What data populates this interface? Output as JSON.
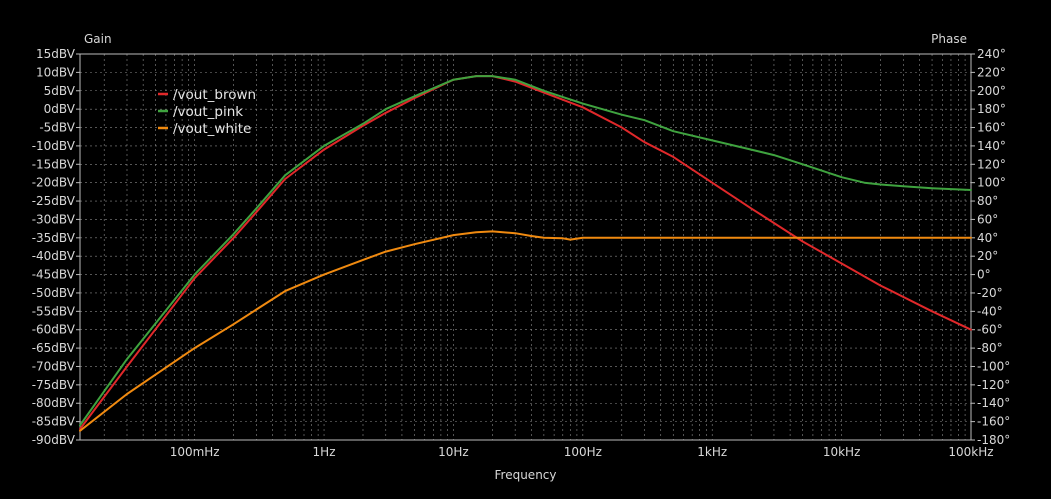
{
  "chart_data": {
    "type": "line",
    "xlabel": "Frequency",
    "y1label": "Gain",
    "y2label": "Phase",
    "x_scale": "log",
    "xlim_hz": [
      0.013,
      100000
    ],
    "ylim_dbv": [
      -90,
      15
    ],
    "y2lim_deg": [
      -180,
      240
    ],
    "grid": true,
    "legend_placement": "top-left",
    "x_tick_labels": [
      {
        "value": 0.1,
        "label": "100mHz"
      },
      {
        "value": 1,
        "label": "1Hz"
      },
      {
        "value": 10,
        "label": "10Hz"
      },
      {
        "value": 100,
        "label": "100Hz"
      },
      {
        "value": 1000,
        "label": "1kHz"
      },
      {
        "value": 10000,
        "label": "10kHz"
      },
      {
        "value": 100000,
        "label": "100kHz"
      }
    ],
    "y_tick_labels": [
      "15dBV",
      "10dBV",
      "5dBV",
      "0dBV",
      "-5dBV",
      "-10dBV",
      "-15dBV",
      "-20dBV",
      "-25dBV",
      "-30dBV",
      "-35dBV",
      "-40dBV",
      "-45dBV",
      "-50dBV",
      "-55dBV",
      "-60dBV",
      "-65dBV",
      "-70dBV",
      "-75dBV",
      "-80dBV",
      "-85dBV",
      "-90dBV"
    ],
    "y_tick_values": [
      15,
      10,
      5,
      0,
      -5,
      -10,
      -15,
      -20,
      -25,
      -30,
      -35,
      -40,
      -45,
      -50,
      -55,
      -60,
      -65,
      -70,
      -75,
      -80,
      -85,
      -90
    ],
    "y2_tick_labels": [
      "240°",
      "220°",
      "200°",
      "180°",
      "160°",
      "140°",
      "120°",
      "100°",
      "80°",
      "60°",
      "40°",
      "20°",
      "0°",
      "-20°",
      "-40°",
      "-60°",
      "-80°",
      "-100°",
      "-120°",
      "-140°",
      "-160°",
      "-180°"
    ],
    "y2_tick_values": [
      240,
      220,
      200,
      180,
      160,
      140,
      120,
      100,
      80,
      60,
      40,
      20,
      0,
      -20,
      -40,
      -60,
      -80,
      -100,
      -120,
      -140,
      -160,
      -180
    ],
    "series": [
      {
        "name": "/vout_brown",
        "color": "#e0282a",
        "x": [
          0.013,
          0.03,
          0.1,
          0.2,
          0.3,
          0.5,
          1,
          2,
          3,
          5,
          10,
          15,
          20,
          30,
          50,
          100,
          200,
          300,
          500,
          1000,
          2000,
          5000,
          10000,
          20000,
          50000,
          100000
        ],
        "y": [
          -87,
          -70,
          -46,
          -35,
          -28,
          -19,
          -11,
          -4.5,
          -1,
          3,
          8,
          9,
          9,
          7.5,
          4.5,
          0.5,
          -5,
          -9,
          -13,
          -20,
          -27,
          -36,
          -42,
          -48,
          -55,
          -60
        ]
      },
      {
        "name": "/vout_pink",
        "color": "#3fa33f",
        "x": [
          0.013,
          0.03,
          0.1,
          0.2,
          0.3,
          0.5,
          1,
          2,
          3,
          5,
          10,
          15,
          20,
          30,
          50,
          100,
          200,
          300,
          500,
          1000,
          2000,
          3000,
          5000,
          10000,
          15000,
          20000,
          30000,
          50000,
          100000
        ],
        "y": [
          -86,
          -68,
          -45,
          -34,
          -27,
          -18,
          -10,
          -4,
          0,
          3.5,
          8,
          9,
          9,
          8,
          5,
          1.5,
          -1.5,
          -3,
          -6,
          -8.5,
          -11,
          -12.5,
          -15,
          -18.5,
          -20,
          -20.5,
          -21,
          -21.5,
          -22
        ]
      },
      {
        "name": "/vout_white",
        "color": "#f08a10",
        "axis": "phase",
        "x": [
          0.013,
          0.03,
          0.1,
          0.2,
          0.3,
          0.5,
          1,
          2,
          3,
          5,
          10,
          15,
          20,
          30,
          40,
          50,
          70,
          80,
          100,
          1000,
          10000,
          100000
        ],
        "y": [
          -170,
          -130,
          -80,
          -54,
          -38,
          -18,
          0,
          16,
          25,
          33,
          43,
          46,
          47,
          45,
          42,
          40,
          39.5,
          38,
          40,
          40,
          40,
          40
        ]
      }
    ]
  }
}
